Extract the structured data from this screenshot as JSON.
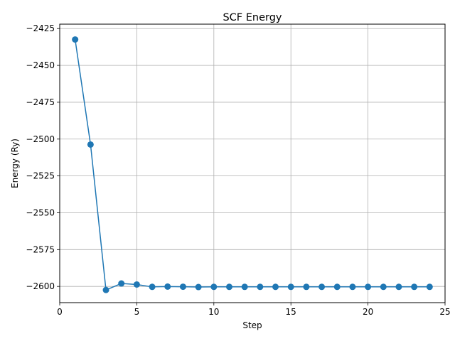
{
  "chart_data": {
    "type": "line",
    "title": "SCF Energy",
    "xlabel": "Step",
    "ylabel": "Energy (Ry)",
    "xlim": [
      0,
      25
    ],
    "ylim": [
      -2611,
      -2422
    ],
    "xticks": [
      0,
      5,
      10,
      15,
      20,
      25
    ],
    "yticks": [
      -2425,
      -2450,
      -2475,
      -2500,
      -2525,
      -2550,
      -2575,
      -2600
    ],
    "grid": true,
    "series": [
      {
        "color": "#1f77b4",
        "marker": "circle",
        "x": [
          1,
          2,
          3,
          4,
          5,
          6,
          7,
          8,
          9,
          10,
          11,
          12,
          13,
          14,
          15,
          16,
          17,
          18,
          19,
          20,
          21,
          22,
          23,
          24
        ],
        "y": [
          -2432.4,
          -2503.7,
          -2602.4,
          -2598.0,
          -2598.7,
          -2600.3,
          -2600.1,
          -2600.2,
          -2600.4,
          -2600.3,
          -2600.3,
          -2600.3,
          -2600.3,
          -2600.3,
          -2600.3,
          -2600.3,
          -2600.3,
          -2600.3,
          -2600.3,
          -2600.3,
          -2600.3,
          -2600.3,
          -2600.3,
          -2600.3
        ]
      }
    ]
  }
}
